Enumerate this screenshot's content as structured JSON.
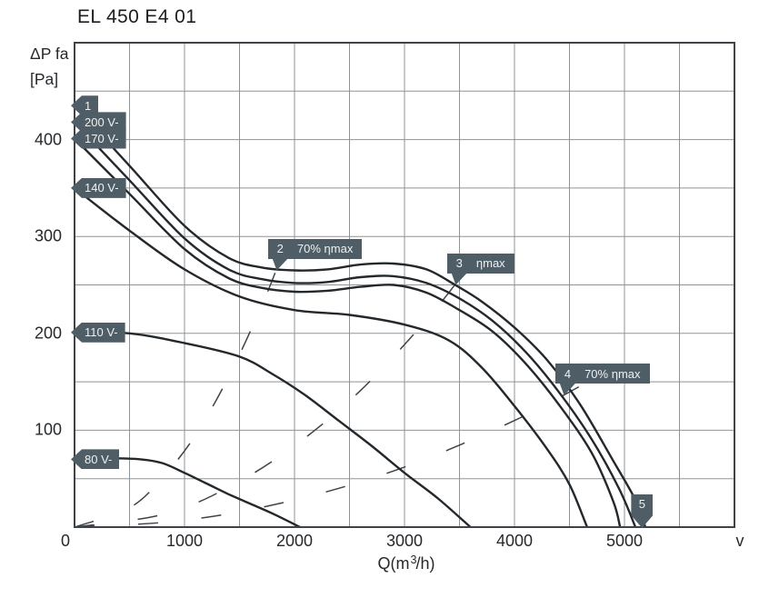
{
  "title": "EL 450 E4 01",
  "y_axis_label": {
    "line1": "ΔP fa",
    "line2": "[Pa]"
  },
  "x_axis_label_parts": {
    "pre": "Q(m",
    "sup": "3",
    "post": "/h)"
  },
  "colors": {
    "background": "#ffffff",
    "curve": "#23282c",
    "grid": "#909396",
    "border": "#3f4347",
    "dashed": "#3f4347",
    "text": "#26292c",
    "tag_bg": "#4f5d66",
    "tag_text": "#eef1f2"
  },
  "chart_data": {
    "type": "line",
    "title": "EL 450 E4 01",
    "xlabel": "Q(m3/h)",
    "ylabel": "ΔP fa [Pa]",
    "xlim": [
      0,
      6000
    ],
    "ylim": [
      0,
      500
    ],
    "x_ticks": [
      0,
      1000,
      2000,
      3000,
      4000,
      5000
    ],
    "x_end_label": "v",
    "y_ticks": [
      100,
      200,
      300,
      400
    ],
    "grid": {
      "on": true,
      "x_step": 500,
      "y_step": 50
    },
    "legend": "none",
    "series": [
      {
        "key": "curve1",
        "name": "1",
        "points": [
          [
            0,
            435
          ],
          [
            500,
            373
          ],
          [
            1000,
            311
          ],
          [
            1400,
            278
          ],
          [
            1700,
            268
          ],
          [
            2000,
            265
          ],
          [
            2300,
            266
          ],
          [
            2600,
            271
          ],
          [
            2900,
            272
          ],
          [
            3200,
            266
          ],
          [
            3460,
            250
          ],
          [
            3700,
            233
          ],
          [
            4000,
            206
          ],
          [
            4300,
            172
          ],
          [
            4600,
            126
          ],
          [
            4900,
            68
          ],
          [
            5100,
            28
          ],
          [
            5190,
            0
          ]
        ]
      },
      {
        "key": "curve200v",
        "name": "200 V-",
        "points": [
          [
            0,
            418
          ],
          [
            500,
            358
          ],
          [
            1000,
            298
          ],
          [
            1400,
            266
          ],
          [
            1700,
            256
          ],
          [
            2000,
            252
          ],
          [
            2300,
            253
          ],
          [
            2600,
            258
          ],
          [
            2900,
            259
          ],
          [
            3200,
            252
          ],
          [
            3500,
            236
          ],
          [
            3800,
            213
          ],
          [
            4100,
            181
          ],
          [
            4400,
            140
          ],
          [
            4700,
            91
          ],
          [
            4950,
            40
          ],
          [
            5100,
            0
          ]
        ]
      },
      {
        "key": "curve170v",
        "name": "170 V-",
        "points": [
          [
            0,
            401
          ],
          [
            500,
            344
          ],
          [
            1000,
            287
          ],
          [
            1400,
            257
          ],
          [
            1700,
            247
          ],
          [
            2000,
            243
          ],
          [
            2300,
            244
          ],
          [
            2600,
            248
          ],
          [
            2900,
            250
          ],
          [
            3200,
            242
          ],
          [
            3500,
            224
          ],
          [
            3800,
            202
          ],
          [
            4100,
            169
          ],
          [
            4400,
            127
          ],
          [
            4700,
            77
          ],
          [
            4900,
            26
          ],
          [
            4960,
            0
          ]
        ]
      },
      {
        "key": "curve140v",
        "name": "140 V-",
        "points": [
          [
            0,
            350
          ],
          [
            500,
            306
          ],
          [
            1000,
            266
          ],
          [
            1500,
            238
          ],
          [
            2000,
            224
          ],
          [
            2500,
            219
          ],
          [
            3000,
            209
          ],
          [
            3400,
            193
          ],
          [
            3700,
            165
          ],
          [
            4000,
            125
          ],
          [
            4300,
            80
          ],
          [
            4500,
            44
          ],
          [
            4660,
            0
          ]
        ]
      },
      {
        "key": "curve110v",
        "name": "110 V-",
        "points": [
          [
            0,
            201
          ],
          [
            500,
            200
          ],
          [
            1000,
            190
          ],
          [
            1500,
            176
          ],
          [
            1800,
            158
          ],
          [
            2100,
            136
          ],
          [
            2400,
            110
          ],
          [
            2700,
            84
          ],
          [
            3000,
            56
          ],
          [
            3300,
            30
          ],
          [
            3600,
            0
          ]
        ]
      },
      {
        "key": "curve80v",
        "name": "80 V-",
        "points": [
          [
            0,
            70
          ],
          [
            300,
            71
          ],
          [
            600,
            70
          ],
          [
            800,
            66
          ],
          [
            1000,
            56
          ],
          [
            1200,
            45
          ],
          [
            1400,
            34
          ],
          [
            1600,
            24
          ],
          [
            1800,
            14
          ],
          [
            2050,
            0
          ]
        ]
      }
    ],
    "efficiency_curves": [
      {
        "key": "eff70left",
        "name": "70% ηmax (left)",
        "style": "dashed",
        "points": [
          [
            0,
            0
          ],
          [
            500,
            20
          ],
          [
            800,
            51
          ],
          [
            1100,
            95
          ],
          [
            1400,
            155
          ],
          [
            1700,
            228
          ],
          [
            1900,
            285
          ]
        ]
      },
      {
        "key": "effmax",
        "name": "ηmax",
        "style": "dashed",
        "points": [
          [
            0,
            0
          ],
          [
            800,
            13
          ],
          [
            1400,
            41
          ],
          [
            2000,
            84
          ],
          [
            2600,
            141
          ],
          [
            3200,
            214
          ],
          [
            3600,
            271
          ]
        ]
      },
      {
        "key": "eff70right",
        "name": "70% ηmax (right)",
        "style": "dashed",
        "points": [
          [
            0,
            0
          ],
          [
            1000,
            7
          ],
          [
            2000,
            28
          ],
          [
            3000,
            62
          ],
          [
            4000,
            110
          ],
          [
            4700,
            152
          ]
        ]
      }
    ],
    "annotations": [
      {
        "id": "point-1",
        "type": "left",
        "text": "1",
        "at": [
          0,
          435
        ]
      },
      {
        "id": "200v",
        "type": "left",
        "text": "200 V-",
        "at": [
          0,
          418
        ]
      },
      {
        "id": "170v",
        "type": "left",
        "text": "170 V-",
        "at": [
          0,
          401
        ]
      },
      {
        "id": "140v",
        "type": "left",
        "text": "140 V-",
        "at": [
          0,
          350
        ]
      },
      {
        "id": "110v",
        "type": "left",
        "text": "110 V-",
        "at": [
          0,
          201
        ]
      },
      {
        "id": "80v",
        "type": "left",
        "text": "80 V-",
        "at": [
          0,
          70
        ]
      },
      {
        "id": "point-2",
        "type": "callout",
        "num": "2",
        "text": "70% ηmax",
        "at": [
          1832,
          265
        ]
      },
      {
        "id": "point-3",
        "type": "callout",
        "num": "3",
        "text": "ηmax",
        "at": [
          3460,
          250
        ]
      },
      {
        "id": "point-4",
        "type": "callout",
        "num": "4",
        "text": "70% ηmax",
        "at": [
          4445,
          136
        ]
      },
      {
        "id": "point-5",
        "type": "down",
        "num": "5",
        "text": "",
        "at": [
          5160,
          0
        ]
      }
    ]
  }
}
